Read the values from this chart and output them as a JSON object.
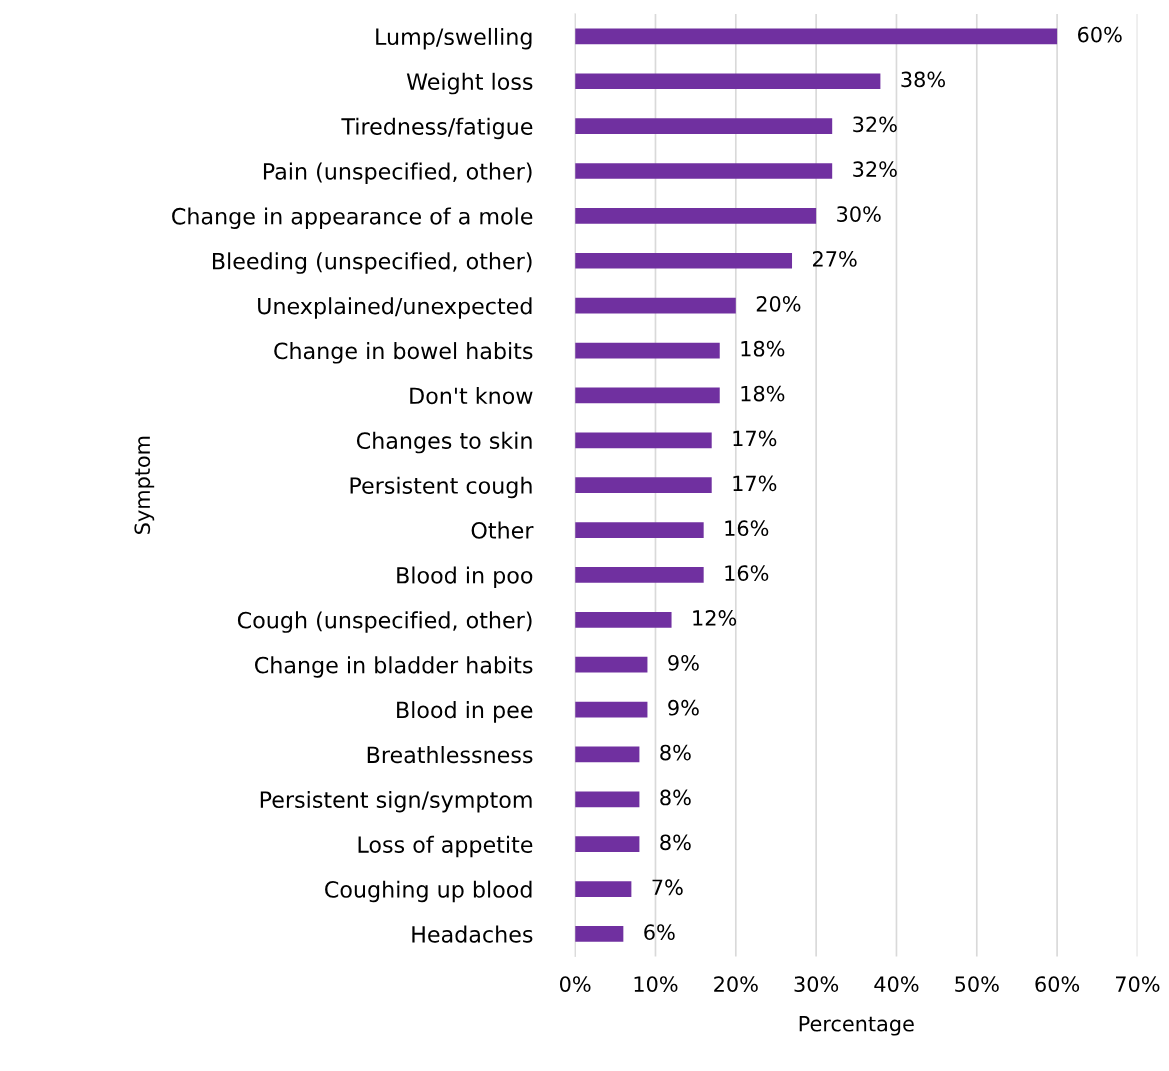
{
  "chart_data": {
    "type": "bar",
    "orientation": "horizontal",
    "xlabel": "Percentage",
    "ylabel": "Symptom",
    "categories": [
      "Lump/swelling",
      "Weight loss",
      "Tiredness/fatigue",
      "Pain (unspecified, other)",
      "Change in appearance of a mole",
      "Bleeding (unspecified, other)",
      "Unexplained/unexpected",
      "Change in bowel habits",
      "Don't know",
      "Changes to skin",
      "Persistent cough",
      "Other",
      "Blood in poo",
      "Cough (unspecified, other)",
      "Change in bladder habits",
      "Blood in pee",
      "Breathlessness",
      "Persistent sign/symptom",
      "Loss of appetite",
      "Coughing up blood",
      "Headaches"
    ],
    "values": [
      60,
      38,
      32,
      32,
      30,
      27,
      20,
      18,
      18,
      17,
      17,
      16,
      16,
      12,
      9,
      9,
      8,
      8,
      8,
      7,
      6
    ],
    "value_labels": [
      "60%",
      "38%",
      "32%",
      "32%",
      "30%",
      "27%",
      "20%",
      "18%",
      "18%",
      "17%",
      "17%",
      "16%",
      "16%",
      "12%",
      "9%",
      "9%",
      "8%",
      "8%",
      "8%",
      "7%",
      "6%"
    ],
    "color": "#7030a0",
    "xlim": [
      0,
      70
    ],
    "xticks": [
      {
        "value": 0,
        "label": "0%"
      },
      {
        "value": 10,
        "label": "10%"
      },
      {
        "value": 20,
        "label": "20%"
      },
      {
        "value": 30,
        "label": "30%"
      },
      {
        "value": 40,
        "label": "40%"
      },
      {
        "value": 50,
        "label": "50%"
      },
      {
        "value": 60,
        "label": "60%"
      },
      {
        "value": 70,
        "label": "70%"
      }
    ],
    "grid": "x",
    "legend": false
  }
}
